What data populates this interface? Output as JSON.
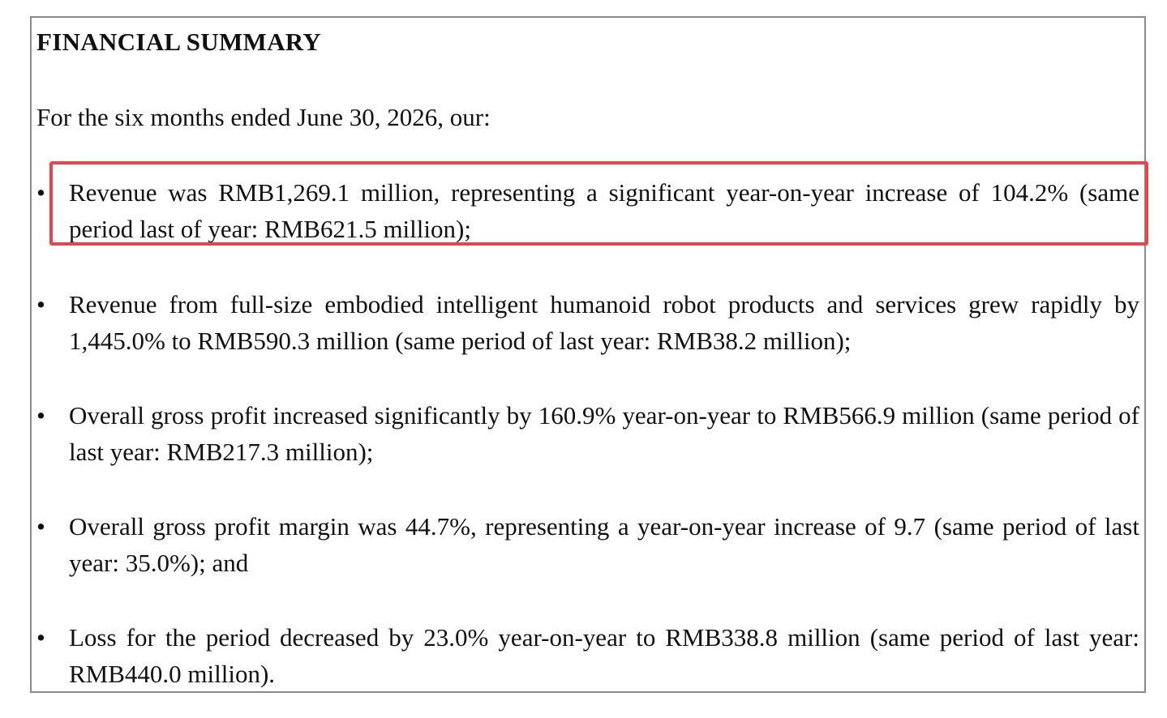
{
  "document": {
    "title": "FINANCIAL SUMMARY",
    "intro": "For the six months ended June 30, 2026, our:",
    "bullet_symbol": "•",
    "bullets": [
      "Revenue was RMB1,269.1 million, representing a significant year-on-year increase of 104.2% (same period last of year: RMB621.5 million);",
      "Revenue from full-size embodied intelligent humanoid robot products and services grew rapidly by 1,445.0% to RMB590.3 million (same period of last year: RMB38.2 million);",
      "Overall gross profit increased significantly by 160.9% year-on-year to RMB566.9 million (same period of last year: RMB217.3 million);",
      "Overall gross profit margin was 44.7%, representing a year-on-year increase of 9.7 (same period of last year: 35.0%); and",
      "Loss for the period decreased by 23.0% year-on-year to RMB338.8 million (same period of last year: RMB440.0 million)."
    ]
  },
  "highlight": {
    "color": "#e8464f",
    "target_bullet_index": 0
  }
}
